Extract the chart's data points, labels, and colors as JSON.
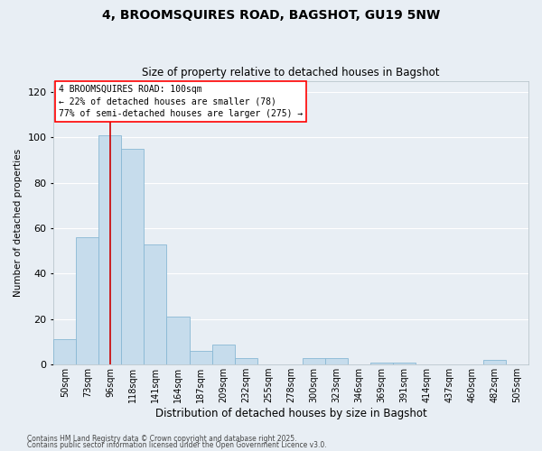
{
  "title": "4, BROOMSQUIRES ROAD, BAGSHOT, GU19 5NW",
  "subtitle": "Size of property relative to detached houses in Bagshot",
  "xlabel": "Distribution of detached houses by size in Bagshot",
  "ylabel": "Number of detached properties",
  "bar_labels": [
    "50sqm",
    "73sqm",
    "96sqm",
    "118sqm",
    "141sqm",
    "164sqm",
    "187sqm",
    "209sqm",
    "232sqm",
    "255sqm",
    "278sqm",
    "300sqm",
    "323sqm",
    "346sqm",
    "369sqm",
    "391sqm",
    "414sqm",
    "437sqm",
    "460sqm",
    "482sqm",
    "505sqm"
  ],
  "bar_values": [
    11,
    56,
    101,
    95,
    53,
    21,
    6,
    9,
    3,
    0,
    0,
    3,
    3,
    0,
    1,
    1,
    0,
    0,
    0,
    2,
    0
  ],
  "bar_color": "#c6dcec",
  "bar_edge_color": "#89b8d4",
  "vline_x_index": 2,
  "vline_color": "#cc0000",
  "ylim": [
    0,
    125
  ],
  "yticks": [
    0,
    20,
    40,
    60,
    80,
    100,
    120
  ],
  "annotation_title": "4 BROOMSQUIRES ROAD: 100sqm",
  "annotation_line2": "← 22% of detached houses are smaller (78)",
  "annotation_line3": "77% of semi-detached houses are larger (275) →",
  "footer1": "Contains HM Land Registry data © Crown copyright and database right 2025.",
  "footer2": "Contains public sector information licensed under the Open Government Licence v3.0.",
  "background_color": "#e8eef4",
  "grid_color": "#ffffff",
  "title_fontsize": 10,
  "subtitle_fontsize": 8.5,
  "xlabel_fontsize": 8.5,
  "ylabel_fontsize": 7.5,
  "tick_fontsize": 7,
  "annotation_fontsize": 7,
  "footer_fontsize": 5.5
}
